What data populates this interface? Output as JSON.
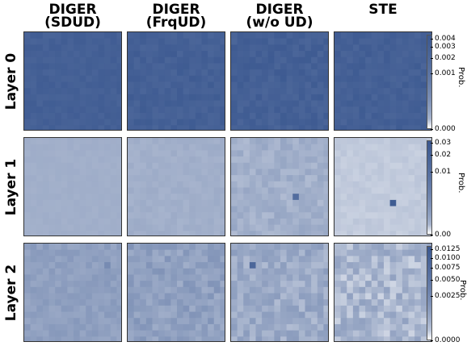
{
  "chart_data": {
    "type": "heatmap",
    "columns": [
      "DIGER\n(SDUD)",
      "DIGER\n(FrqUD)",
      "DIGER\n(w/o UD)",
      "STE"
    ],
    "rows": [
      "Layer 0",
      "Layer 1",
      "Layer 2"
    ],
    "grid_size": 16,
    "colormap": {
      "low": "#ffffff",
      "high": "#3b5890"
    },
    "colorbars": [
      {
        "label": "Prob.",
        "ticks": [
          "0.004",
          "0.003",
          "0.002",
          "0.001",
          "0.000"
        ],
        "tick_values": [
          0.004,
          0.003,
          0.002,
          0.001,
          0.0
        ],
        "max": 0.0045,
        "gamma": 0.35
      },
      {
        "label": "Prob.",
        "ticks": [
          "0.03",
          "0.02",
          "0.01",
          "0.00"
        ],
        "tick_values": [
          0.03,
          0.02,
          0.01,
          0.0
        ],
        "max": 0.032,
        "gamma": 0.35
      },
      {
        "label": "Prob.",
        "ticks": [
          "0.0125",
          "0.0100",
          "0.0075",
          "0.0050",
          "0.0025",
          "0.0000"
        ],
        "tick_values": [
          0.0125,
          0.01,
          0.0075,
          0.005,
          0.0025,
          0.0
        ],
        "max": 0.0135,
        "gamma": 0.45
      }
    ],
    "panel_stats": [
      [
        {
          "mean": 0.0039,
          "spread": 0.00025
        },
        {
          "mean": 0.0039,
          "spread": 0.00035
        },
        {
          "mean": 0.0039,
          "spread": 0.0004
        },
        {
          "mean": 0.0039,
          "spread": 0.00035
        }
      ],
      [
        {
          "mean": 0.0039,
          "spread": 0.0003
        },
        {
          "mean": 0.0039,
          "spread": 0.0006
        },
        {
          "mean": 0.0039,
          "spread": 0.0015
        },
        {
          "mean": 0.0012,
          "spread": 0.0004
        }
      ],
      [
        {
          "mean": 0.0039,
          "spread": 0.0007
        },
        {
          "mean": 0.0039,
          "spread": 0.0012
        },
        {
          "mean": 0.003,
          "spread": 0.0013
        },
        {
          "mean": 0.0022,
          "spread": 0.0016
        }
      ]
    ],
    "peaks": [
      {
        "row": 1,
        "col": 2,
        "cell": [
          9,
          10
        ],
        "value": 0.022
      },
      {
        "row": 1,
        "col": 3,
        "cell": [
          10,
          9
        ],
        "value": 0.03
      },
      {
        "row": 2,
        "col": 2,
        "cell": [
          3,
          3
        ],
        "value": 0.011
      },
      {
        "row": 2,
        "col": 0,
        "cell": [
          3,
          13
        ],
        "value": 0.006
      }
    ]
  }
}
